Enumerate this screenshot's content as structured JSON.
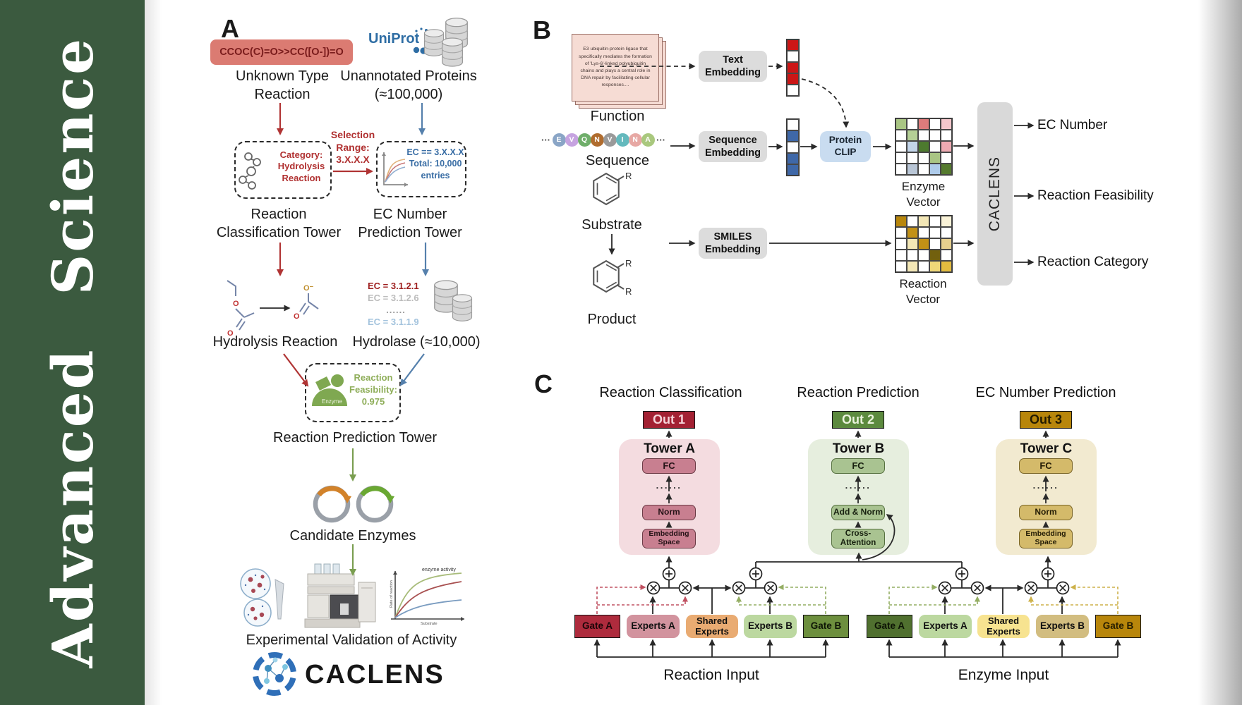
{
  "journal": {
    "name": "Advanced  Science"
  },
  "colors": {
    "sidebar_green": "#3b5a3f",
    "smiles_box_bg": "#db7b72",
    "smiles_text": "#7a1c1c",
    "red_accent": "#b03434",
    "blue_accent": "#5580ac",
    "green_accent": "#7a9e50",
    "uniprot_blue": "#2e6da4",
    "out1_red": "#a32133",
    "out2_green": "#5c8a3e",
    "out3_gold": "#b8860b",
    "caclens_bar_bg": "#d9d9d9"
  },
  "panelA": {
    "label": "A",
    "smiles": "CCOC(C)=O>>CC([O-])=O",
    "unknown_reaction": "Unknown Type Reaction",
    "uniprot": "UniProt",
    "unannotated": "Unannotated Proteins (≈100,000)",
    "selection": "Selection Range: 3.X.X.X",
    "category": "Category: Hydrolysis Reaction",
    "ec_filter": "EC == 3.X.X.X Total: 10,000 entries",
    "classification_tower": "Reaction Classification Tower",
    "ec_tower": "EC Number Prediction Tower",
    "hydrolysis": "Hydrolysis Reaction",
    "ec_list": [
      "EC = 3.1.2.1",
      "EC = 3.1.2.6",
      "......",
      "EC = 3.1.1.9"
    ],
    "hydrolase": "Hydrolase (≈10,000)",
    "enzyme_badge": "Enzyme",
    "feasibility": "Reaction Feasibility: 0.975",
    "prediction_tower": "Reaction Prediction Tower",
    "candidates": "Candidate Enzymes",
    "validation": "Experimental Validation of Activity",
    "brand": "CACLENS",
    "activity_plot": {
      "annotation": "enzyme activity",
      "ylabel": "Rate of reaction",
      "xlabel": "Substrate"
    }
  },
  "panelB": {
    "label": "B",
    "function_text": "E3 ubiquitin-protein ligase that specifically mediates the formation of 'Lys-6'-linked polyubiquitin chains and plays a central role in DNA repair by facilitating cellular responses....",
    "function_label": "Function",
    "ellipsis": "···",
    "residues": [
      {
        "l": "E",
        "c": "#8aa5c6"
      },
      {
        "l": "V",
        "c": "#c6a3e0"
      },
      {
        "l": "Q",
        "c": "#6fae6a"
      },
      {
        "l": "N",
        "c": "#b06c2e"
      },
      {
        "l": "V",
        "c": "#9a9a9a"
      },
      {
        "l": "I",
        "c": "#64b9bd"
      },
      {
        "l": "N",
        "c": "#e7a8a4"
      },
      {
        "l": "A",
        "c": "#a9c87e"
      }
    ],
    "sequence_label": "Sequence",
    "substrate_label": "Substrate",
    "product_label": "Product",
    "r_group": "R",
    "text_embedding": "Text Embedding",
    "sequence_embedding": "Sequence Embedding",
    "smiles_embedding": "SMILES Embedding",
    "protein_clip": "Protein CLIP",
    "enzyme_vector_label": "Enzyme Vector",
    "reaction_vector_label": "Reaction Vector",
    "caclens": "CACLENS",
    "outputs": [
      "EC Number",
      "Reaction Feasibility",
      "Reaction Category"
    ],
    "text_vector": [
      "#cc1616",
      "#ffffff",
      "#cc1616",
      "#cc1616",
      "#ffffff"
    ],
    "seq_vector": [
      "#ffffff",
      "#3f68a8",
      "#ffffff",
      "#3f68a8",
      "#3f68a8"
    ],
    "enzyme_grid": [
      [
        "#a9c584",
        "#ffffff",
        "#dd7b7b",
        "#ffffff",
        "#f3c6cb"
      ],
      [
        "#ffffff",
        "#b5d096",
        "#ffffff",
        "#ffffff",
        "#ffffff"
      ],
      [
        "#ffffff",
        "#c3d5ea",
        "#4d7a2e",
        "#ffffff",
        "#eeaab2"
      ],
      [
        "#ffffff",
        "#ffffff",
        "#ffffff",
        "#a9c584",
        "#ffffff"
      ],
      [
        "#ffffff",
        "#b9c6d6",
        "#ffffff",
        "#aecbea",
        "#557a2e"
      ]
    ],
    "reaction_grid": [
      [
        "#b8860b",
        "#ffffff",
        "#f3e7b6",
        "#ffffff",
        "#faf3d8"
      ],
      [
        "#ffffff",
        "#c29116",
        "#ffffff",
        "#ffffff",
        "#ffffff"
      ],
      [
        "#ffffff",
        "#f3e7b6",
        "#c29116",
        "#ffffff",
        "#e6cf8e"
      ],
      [
        "#ffffff",
        "#ffffff",
        "#ffffff",
        "#72600e",
        "#ffffff"
      ],
      [
        "#ffffff",
        "#f3e7b6",
        "#ffffff",
        "#f0d878",
        "#e3bc3f"
      ]
    ]
  },
  "panelC": {
    "label": "C",
    "titles": [
      "Reaction Classification",
      "Reaction Prediction",
      "EC Number Prediction"
    ],
    "outs": [
      "Out 1",
      "Out 2",
      "Out 3"
    ],
    "dots": "......",
    "towers": [
      {
        "name": "Tower A",
        "top": "FC",
        "mid": "Norm",
        "bottom": "Embedding Space"
      },
      {
        "name": "Tower B",
        "top": "FC",
        "mid": "Add & Norm",
        "bottom": "Cross-Attention"
      },
      {
        "name": "Tower C",
        "top": "FC",
        "mid": "Norm",
        "bottom": "Embedding Space"
      }
    ],
    "moe_left": {
      "gate_a": "Gate A",
      "experts_a": "Experts A",
      "shared": "Shared Experts",
      "experts_b": "Experts B",
      "gate_b": "Gate B",
      "input": "Reaction Input"
    },
    "moe_right": {
      "gate_a": "Gate A",
      "experts_a": "Experts A",
      "shared": "Shared Experts",
      "experts_b": "Experts B",
      "gate_b": "Gate B",
      "input": "Enzyme Input"
    }
  }
}
